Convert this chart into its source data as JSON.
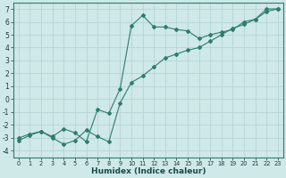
{
  "xlabel": "Humidex (Indice chaleur)",
  "ylabel": "",
  "xlim": [
    -0.5,
    23.5
  ],
  "ylim": [
    -4.5,
    7.5
  ],
  "xticks": [
    0,
    1,
    2,
    3,
    4,
    5,
    6,
    7,
    8,
    9,
    10,
    11,
    12,
    13,
    14,
    15,
    16,
    17,
    18,
    19,
    20,
    21,
    22,
    23
  ],
  "yticks": [
    -4,
    -3,
    -2,
    -1,
    0,
    1,
    2,
    3,
    4,
    5,
    6,
    7
  ],
  "bg_color": "#cfe8e8",
  "line_color": "#2e7d6e",
  "grid_color": "#b0d0d0",
  "curve1_x": [
    0,
    1,
    2,
    3,
    4,
    5,
    6,
    7,
    8,
    9,
    10,
    11,
    12,
    13,
    14,
    15,
    16,
    17,
    18,
    19,
    20,
    21,
    22,
    23
  ],
  "curve1_y": [
    -3.0,
    -2.7,
    -2.5,
    -2.9,
    -2.3,
    -2.6,
    -3.3,
    -0.8,
    -1.1,
    0.8,
    5.7,
    6.5,
    5.6,
    5.6,
    5.4,
    5.3,
    4.7,
    5.0,
    5.2,
    5.4,
    6.0,
    6.2,
    7.0,
    7.0
  ],
  "curve2_x": [
    0,
    1,
    2,
    3,
    4,
    5,
    6,
    7,
    8,
    9,
    10,
    11,
    12,
    13,
    14,
    15,
    16,
    17,
    18,
    19,
    20,
    21,
    22,
    23
  ],
  "curve2_y": [
    -3.2,
    -2.8,
    -2.5,
    -3.0,
    -3.5,
    -3.2,
    -2.4,
    -2.9,
    -3.3,
    -0.3,
    1.3,
    1.8,
    2.5,
    3.2,
    3.5,
    3.8,
    4.0,
    4.5,
    5.0,
    5.5,
    5.8,
    6.2,
    6.8,
    7.0
  ]
}
